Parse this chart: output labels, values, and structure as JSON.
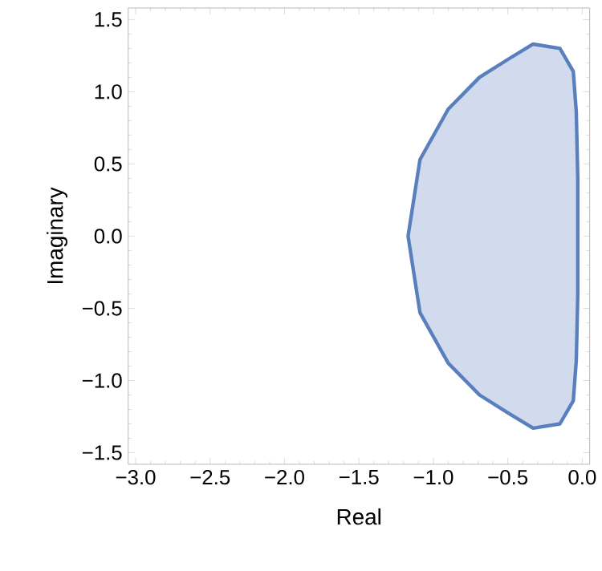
{
  "chart_data": {
    "type": "area",
    "xlabel": "Real",
    "ylabel": "Imaginary",
    "color": "#5a7fbd",
    "x": [
      -0.33,
      -0.15,
      -0.06,
      -0.04,
      -0.03,
      -0.03,
      -0.04,
      -0.06,
      -0.15,
      -0.33,
      -0.49,
      -0.69,
      -0.9,
      -1.09,
      -1.17,
      -1.09,
      -0.9,
      -0.69,
      -0.49,
      -0.33
    ],
    "values": [
      1.33,
      1.3,
      1.14,
      0.86,
      0.4,
      -0.4,
      -0.86,
      -1.14,
      -1.3,
      -1.33,
      -1.23,
      -1.1,
      -0.88,
      -0.53,
      0,
      0.53,
      0.88,
      1.1,
      1.23,
      1.33
    ],
    "xlim": [
      -3.05,
      0.05
    ],
    "ylim": [
      -1.58,
      1.58
    ],
    "xticks": [
      {
        "value": -3,
        "label": "−3.0"
      },
      {
        "value": -2.5,
        "label": "−2.5"
      },
      {
        "value": -2,
        "label": "−2.0"
      },
      {
        "value": -1.5,
        "label": "−1.5"
      },
      {
        "value": -1,
        "label": "−1.0"
      },
      {
        "value": -0.5,
        "label": "−0.5"
      },
      {
        "value": 0,
        "label": "0.0"
      }
    ],
    "yticks": [
      {
        "value": -1.5,
        "label": "−1.5"
      },
      {
        "value": -1,
        "label": "−1.0"
      },
      {
        "value": -0.5,
        "label": "−0.5"
      },
      {
        "value": 0,
        "label": "0.0"
      },
      {
        "value": 0.5,
        "label": "0.5"
      },
      {
        "value": 1,
        "label": "1.0"
      },
      {
        "value": 1.5,
        "label": "1.5"
      }
    ]
  }
}
